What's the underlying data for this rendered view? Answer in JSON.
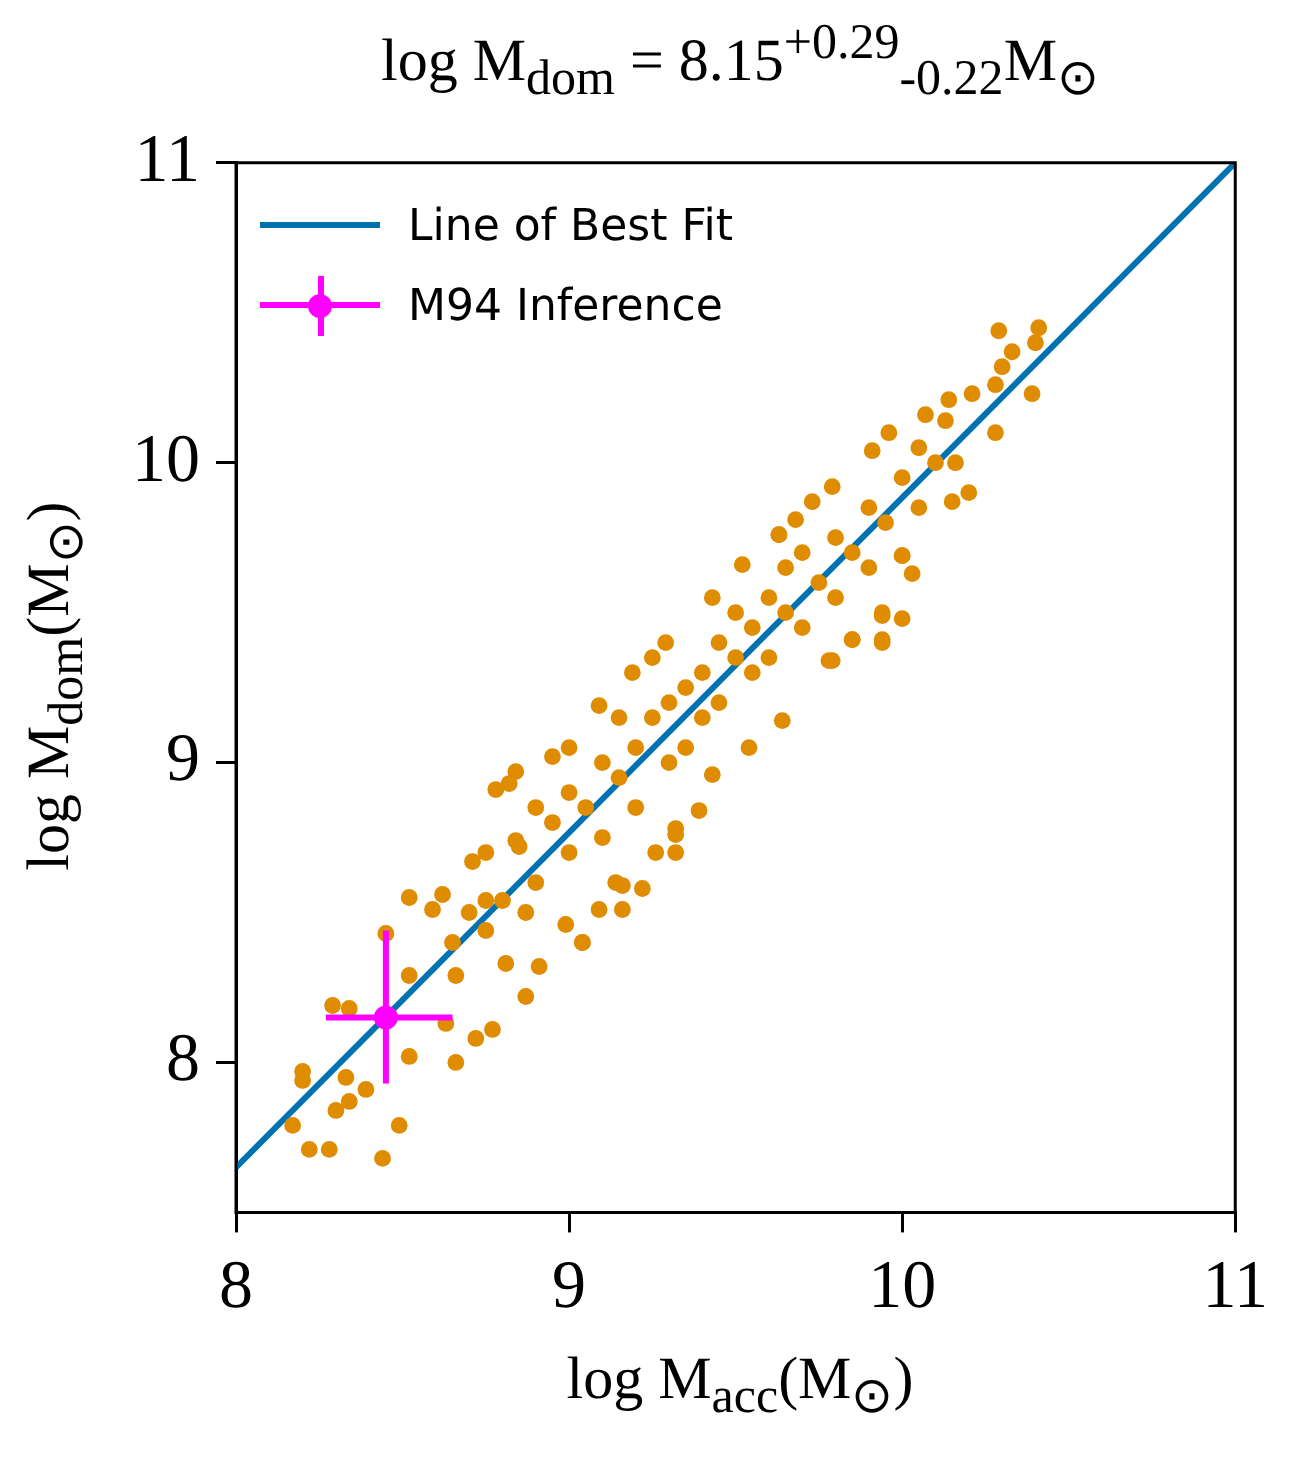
{
  "chart_data": {
    "type": "scatter",
    "title": "log M$_{dom}$ = 8.15$^{+0.29}$$_{-0.22}$M$_{⊙}$",
    "xlabel": "log M$_{acc}$(M$_{⊙}$)",
    "ylabel": "log M$_{dom}$(M$_{⊙}$)",
    "xlim": [
      8,
      11
    ],
    "ylim": [
      7.5,
      11
    ],
    "xticks": [
      8,
      9,
      10,
      11
    ],
    "yticks": [
      8,
      9,
      10,
      11
    ],
    "legend": "top left",
    "series": [
      {
        "name": "Line of Best Fit",
        "type": "line",
        "color": "#0072b2",
        "marker": "none",
        "line_style": "solid",
        "x": [
          8,
          11
        ],
        "values": [
          7.65,
          11
        ]
      },
      {
        "color": "#e08c00",
        "marker": "circle",
        "x": [
          8.2,
          8.2,
          8.17,
          8.22,
          8.28,
          8.44,
          8.49,
          8.39,
          8.3,
          8.34,
          8.33,
          8.52,
          8.66,
          8.77,
          8.72,
          8.29,
          8.34,
          8.63,
          8.52,
          8.66,
          8.87,
          8.91,
          8.45,
          8.52,
          8.59,
          8.75,
          8.81,
          8.62,
          8.71,
          8.75,
          8.87,
          8.99,
          9.04,
          9.16,
          9.14,
          8.78,
          8.82,
          8.84,
          9.32,
          9.22,
          9.32,
          10.29,
          10.41,
          10.4,
          10.33,
          10.3,
          10.39,
          10.28,
          10.21,
          10.14,
          10.28,
          10.16,
          10.2,
          10.15,
          10.0,
          10.03,
          10.0,
          9.94,
          9.94,
          9.85,
          9.79,
          9.73,
          9.63,
          9.68,
          9.79,
          9.91,
          9.96,
          10.07,
          10.13,
          9.52,
          9.43,
          9.29,
          9.19,
          9.09,
          8.95,
          8.84,
          9.63,
          10.0,
          9.94,
          9.85,
          9.78,
          9.64,
          9.54,
          9.43,
          9.39,
          9.32,
          9.26,
          9.16,
          9.09,
          9.04,
          9.94,
          8.8,
          8.85,
          8.9,
          8.95,
          9.0,
          9.0,
          9.05,
          9.1,
          9.1,
          9.15,
          9.2,
          9.2,
          9.25,
          9.3,
          9.3,
          9.35,
          9.35,
          9.4,
          9.4,
          9.45,
          9.45,
          9.5,
          9.5,
          9.55,
          9.55,
          9.6,
          9.6,
          9.65,
          9.65,
          9.7,
          9.7,
          9.75,
          9.8,
          9.8,
          9.85,
          9.9,
          9.9,
          9.95,
          10.0,
          10.05,
          10.05,
          10.1,
          9.25,
          9.0,
          8.9,
          9.15,
          8.7,
          8.75,
          8.65
        ],
        "values": [
          7.94,
          7.97,
          7.79,
          7.71,
          7.71,
          7.68,
          7.79,
          7.91,
          7.84,
          7.87,
          7.95,
          8.02,
          8.0,
          8.11,
          8.08,
          8.19,
          8.18,
          8.13,
          8.29,
          8.29,
          8.22,
          8.32,
          8.43,
          8.55,
          8.51,
          8.44,
          8.33,
          8.56,
          8.67,
          8.54,
          8.5,
          8.46,
          8.4,
          8.51,
          8.6,
          8.91,
          8.93,
          8.74,
          8.7,
          8.58,
          8.78,
          10.44,
          10.45,
          10.4,
          10.37,
          10.32,
          10.23,
          10.26,
          10.23,
          10.21,
          10.1,
          10.0,
          9.9,
          9.87,
          9.69,
          9.63,
          9.48,
          9.4,
          9.5,
          9.41,
          9.34,
          9.87,
          9.76,
          9.81,
          9.92,
          10.04,
          10.1,
          10.16,
          10.14,
          9.66,
          9.55,
          9.4,
          9.3,
          9.19,
          9.02,
          8.97,
          9.76,
          9.69,
          9.41,
          9.41,
          9.34,
          9.14,
          9.05,
          8.96,
          8.84,
          8.76,
          8.7,
          8.59,
          8.51,
          8.4,
          9.49,
          8.54,
          8.72,
          8.6,
          8.8,
          8.7,
          8.9,
          8.85,
          8.75,
          9.0,
          8.95,
          9.05,
          8.85,
          9.15,
          9.0,
          9.2,
          9.25,
          9.05,
          9.3,
          9.15,
          9.4,
          9.2,
          9.35,
          9.5,
          9.3,
          9.45,
          9.55,
          9.35,
          9.5,
          9.65,
          9.45,
          9.7,
          9.6,
          9.75,
          9.55,
          9.7,
          9.85,
          9.65,
          9.8,
          9.95,
          9.85,
          10.05,
          10.0,
          9.35,
          9.05,
          8.85,
          9.15,
          8.5,
          8.7,
          8.4
        ]
      },
      {
        "name": "M94 Inference",
        "type": "scatter",
        "color": "#ff00ff",
        "marker": "circle",
        "x": [
          8.45
        ],
        "values": [
          8.15
        ],
        "errors": [
          [
            7.93,
            8.44
          ]
        ],
        "xerrors": [
          [
            8.27,
            8.65
          ]
        ]
      }
    ]
  }
}
